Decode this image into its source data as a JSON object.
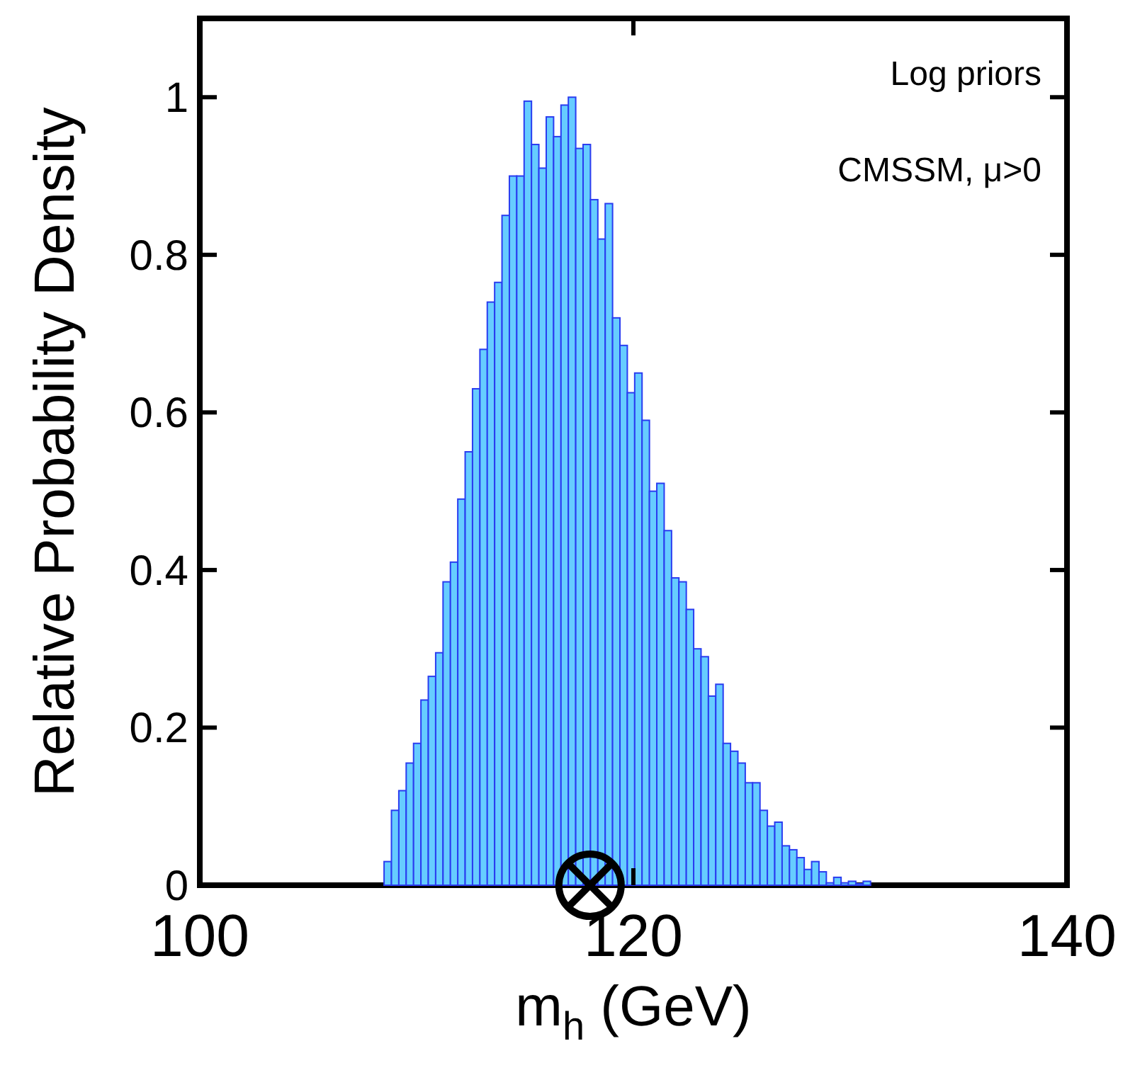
{
  "chart_data": {
    "type": "histogram",
    "xlabel": "m$_{h}$ (GeV)",
    "ylabel": "Relative Probability Density",
    "annotations": [
      "Log priors",
      "CMSSM, μ>0"
    ],
    "xlim": [
      100,
      140
    ],
    "xticks": [
      100,
      120,
      140
    ],
    "ylim": [
      0,
      1.1
    ],
    "yticks": [
      0,
      0.2,
      0.4,
      0.6,
      0.8,
      1
    ],
    "bins": [
      108.5,
      108.84,
      109.18,
      109.52,
      109.86,
      110.2,
      110.54,
      110.88,
      111.22,
      111.56,
      111.9,
      112.24,
      112.58,
      112.92,
      113.26,
      113.6,
      113.94,
      114.28,
      114.62,
      114.96,
      115.3,
      115.64,
      115.98,
      116.32,
      116.66,
      117,
      117.34,
      117.68,
      118.02,
      118.36,
      118.7,
      119.04,
      119.38,
      119.72,
      120.06,
      120.4,
      120.74,
      121.08,
      121.42,
      121.76,
      122.1,
      122.44,
      122.78,
      123.12,
      123.46,
      123.8,
      124.14,
      124.48,
      124.82,
      125.16,
      125.5,
      125.84,
      126.18,
      126.52,
      126.86,
      127.2,
      127.54,
      127.88,
      128.22,
      128.56,
      128.9,
      129.24,
      129.58,
      129.92,
      130.26,
      130.6,
      130.94
    ],
    "series": [
      {
        "color": "#66ccff",
        "values": [
          0.03,
          0.095,
          0.12,
          0.155,
          0.18,
          0.235,
          0.265,
          0.295,
          0.385,
          0.41,
          0.49,
          0.55,
          0.63,
          0.68,
          0.74,
          0.765,
          0.85,
          0.9,
          0.9,
          0.995,
          0.94,
          0.91,
          0.975,
          0.95,
          0.99,
          1,
          0.935,
          0.94,
          0.87,
          0.82,
          0.865,
          0.72,
          0.685,
          0.625,
          0.65,
          0.59,
          0.5,
          0.51,
          0.45,
          0.39,
          0.385,
          0.35,
          0.3,
          0.29,
          0.24,
          0.255,
          0.18,
          0.17,
          0.155,
          0.13,
          0.13,
          0.095,
          0.075,
          0.08,
          0.05,
          0.045,
          0.035,
          0.02,
          0.03,
          0.017,
          0.003,
          0.01,
          0.003,
          0.005,
          0.002,
          0.005
        ]
      },
      {
        "type": "scatter",
        "x": [
          118
        ],
        "values": [
          0
        ],
        "color": "#000000"
      }
    ]
  }
}
